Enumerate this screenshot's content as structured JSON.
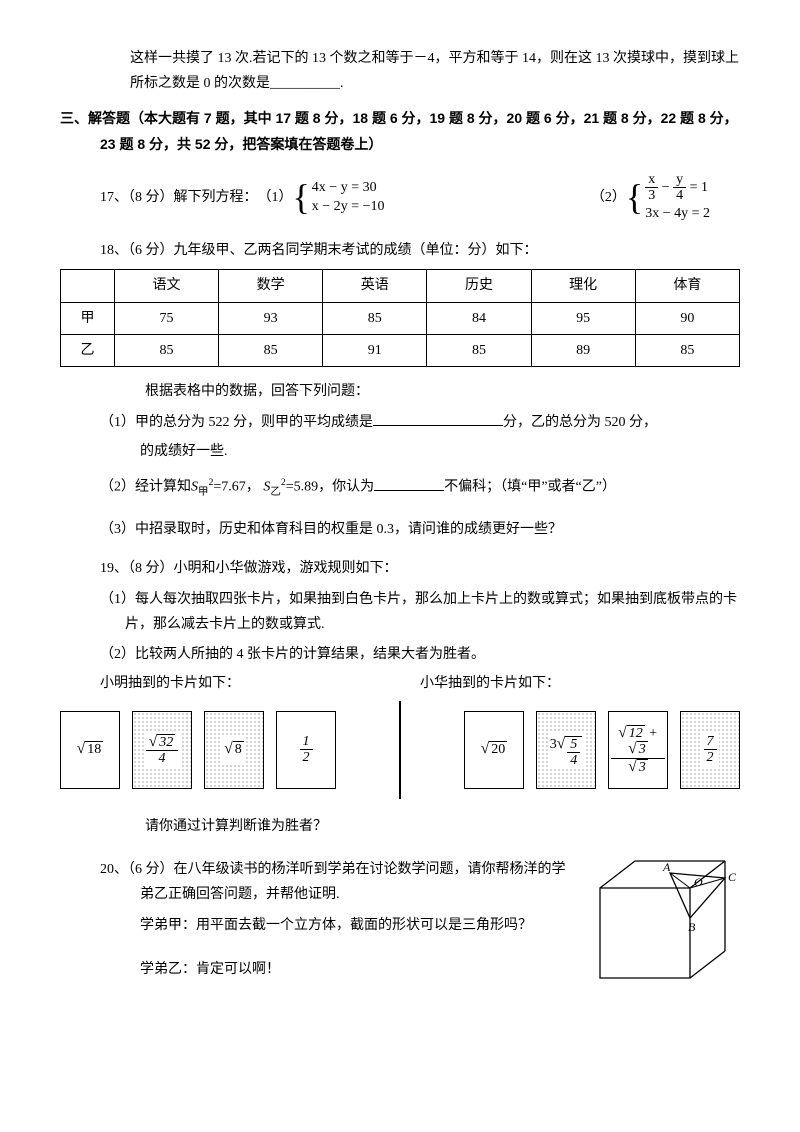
{
  "intro_para": "这样一共摸了 13 次.若记下的 13 个数之和等于－4，平方和等于 14，则在这 13 次摸球中，摸到球上所标之数是 0 的次数是__________.",
  "section3_header": "三、解答题（本大题有 7 题，其中 17 题 8 分，18 题 6 分，19 题 8 分，20 题 6 分，21 题 8 分，22 题 8 分，23 题 8 分，共 52 分，把答案填在答题卷上）",
  "q17": {
    "prefix": "17、（8 分）解下列方程：",
    "part1_label": "（1）",
    "part2_label": "（2）",
    "sys1_l1_html": "4<i>x</i> − <i>y</i> = 30",
    "sys1_l2_html": "<i>x</i> − 2<i>y</i> = −10",
    "sys2_l1_rhs": "= 1",
    "sys2_l2_html": "3<i>x</i> − 4<i>y</i> = 2"
  },
  "q18": {
    "prefix": "18、（6 分）九年级甲、乙两名同学期末考试的成绩（单位：分）如下：",
    "columns": [
      "",
      "语文",
      "数学",
      "英语",
      "历史",
      "理化",
      "体育"
    ],
    "rows": [
      [
        "甲",
        "75",
        "93",
        "85",
        "84",
        "95",
        "90"
      ],
      [
        "乙",
        "85",
        "85",
        "91",
        "85",
        "89",
        "85"
      ]
    ],
    "lead": "根据表格中的数据，回答下列问题：",
    "p1a": "（1）甲的总分为 522 分，则甲的平均成绩是",
    "p1b": "分，乙的总分为 520 分，",
    "p1c": "的成绩好一些.",
    "p2a": "（2）经计算知",
    "p2b": "=7.67，",
    "p2c": "=5.89，你认为",
    "p2d": "不偏科；（填“甲”或者“乙”）",
    "p3": "（3）中招录取时，历史和体育科目的权重是 0.3，请问谁的成绩更好一些？"
  },
  "q19": {
    "prefix": "19、（8 分）小明和小华做游戏，游戏规则如下：",
    "r1": "（1）每人每次抽取四张卡片，如果抽到白色卡片，那么加上卡片上的数或算式；如果抽到底板带点的卡片，那么减去卡片上的数或算式.",
    "r2": "（2）比较两人所抽的 4 张卡片的计算结果，结果大者为胜者。",
    "ming_label": "小明抽到的卡片如下：",
    "hua_label": "小华抽到的卡片如下：",
    "ask": "请你通过计算判断谁为胜者？",
    "cards_ming": [
      {
        "dotted": false,
        "expr_type": "sqrt",
        "radicand": "18"
      },
      {
        "dotted": true,
        "expr_type": "frac_sqrt_over_n",
        "num_rad": "32",
        "den": "4"
      },
      {
        "dotted": true,
        "expr_type": "sqrt",
        "radicand": "8"
      },
      {
        "dotted": false,
        "expr_type": "frac",
        "num": "1",
        "den": "2"
      }
    ],
    "cards_hua": [
      {
        "dotted": false,
        "expr_type": "sqrt",
        "radicand": "20"
      },
      {
        "dotted": true,
        "expr_type": "coef_sqrt_frac",
        "coef": "3",
        "num": "5",
        "den": "4"
      },
      {
        "dotted": false,
        "expr_type": "sum_sqrt_over_sqrt",
        "a": "12",
        "b": "3",
        "den_rad": "3"
      },
      {
        "dotted": true,
        "expr_type": "frac",
        "num": "7",
        "den": "2"
      }
    ]
  },
  "q20": {
    "prefix": "20、（6 分）在八年级读书的杨洋听到学弟在讨论数学问题，请你帮杨洋的学弟乙正确回答问题，并帮他证明.",
    "line1": "学弟甲：用平面去截一个立方体，截面的形状可以是三角形吗？",
    "line2": "学弟乙：肯定可以啊！",
    "labels": {
      "A": "A",
      "B": "B",
      "C": "C",
      "O": "O"
    }
  },
  "style": {
    "page_bg": "#ffffff",
    "text_color": "#000000",
    "card_border": "#000000",
    "dot_color": "#555555"
  }
}
